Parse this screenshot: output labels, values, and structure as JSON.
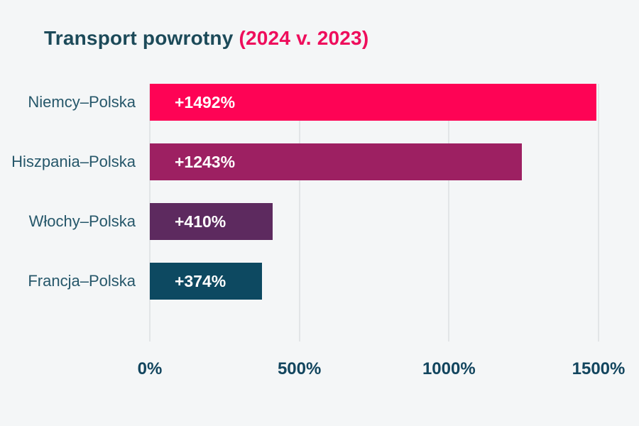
{
  "title": {
    "main": "Transport powrotny",
    "highlight": "(2024 v. 2023)"
  },
  "colors": {
    "background": "#f4f6f7",
    "title_main": "#1c4a59",
    "title_highlight": "#ee0e5c",
    "category_label": "#26576a",
    "axis_label": "#12455e",
    "gridline": "#e2e5e7",
    "bar_value_label": "#ffffff"
  },
  "chart_data": {
    "type": "bar",
    "orientation": "horizontal",
    "title": "Transport powrotny (2024 v. 2023)",
    "categories": [
      "Niemcy–Polska",
      "Hiszpania–Polska",
      "Włochy–Polska",
      "Francja–Polska"
    ],
    "values": [
      1492,
      1243,
      410,
      374
    ],
    "value_labels": [
      "+1492%",
      "+1243%",
      "+410%",
      "+374%"
    ],
    "bar_colors": [
      "#fe0355",
      "#9d2062",
      "#5d2a5f",
      "#0d4961"
    ],
    "xlabel": "",
    "ylabel": "",
    "xlim": [
      0,
      1500
    ],
    "x_ticks": [
      0,
      500,
      1000,
      1500
    ],
    "x_tick_labels": [
      "0%",
      "500%",
      "1000%",
      "1500%"
    ],
    "grid": "vertical",
    "legend": false
  }
}
